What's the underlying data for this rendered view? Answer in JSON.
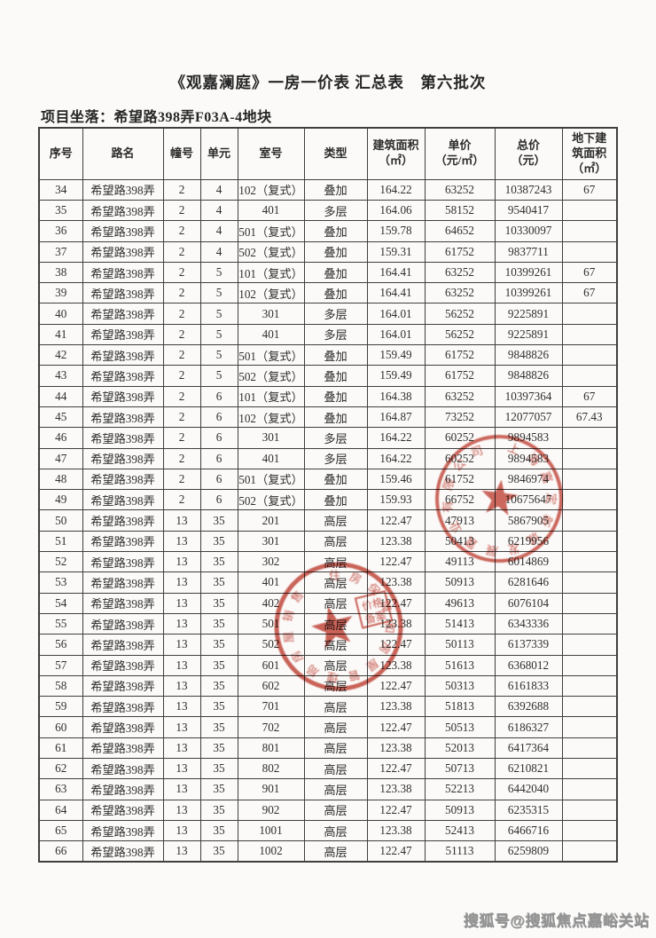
{
  "page": {
    "title": "《观嘉澜庭》一房一价表 汇总表　第六批次",
    "location_label": "项目坐落：",
    "location_value": "希望路398弄F03A-4地块"
  },
  "table": {
    "columns": [
      {
        "key": "seq",
        "label": "序号"
      },
      {
        "key": "road",
        "label": "路名"
      },
      {
        "key": "building",
        "label": "幢号"
      },
      {
        "key": "unit",
        "label": "单元"
      },
      {
        "key": "room",
        "label": "室号"
      },
      {
        "key": "type",
        "label": "类型"
      },
      {
        "key": "area",
        "label": "建筑面积\n（㎡）"
      },
      {
        "key": "unit-price",
        "label": "单价\n（元/㎡）"
      },
      {
        "key": "total-price",
        "label": "总价\n（元）"
      },
      {
        "key": "basement-area",
        "label": "地下建\n筑面积\n（㎡）"
      }
    ],
    "rows": [
      [
        "34",
        "希望路398弄",
        "2",
        "4",
        "102（复式）",
        "叠加",
        "164.22",
        "63252",
        "10387243",
        "67"
      ],
      [
        "35",
        "希望路398弄",
        "2",
        "4",
        "401",
        "多层",
        "164.06",
        "58152",
        "9540417",
        ""
      ],
      [
        "36",
        "希望路398弄",
        "2",
        "4",
        "501（复式）",
        "叠加",
        "159.78",
        "64652",
        "10330097",
        ""
      ],
      [
        "37",
        "希望路398弄",
        "2",
        "4",
        "502（复式）",
        "叠加",
        "159.31",
        "61752",
        "9837711",
        ""
      ],
      [
        "38",
        "希望路398弄",
        "2",
        "5",
        "101（复式）",
        "叠加",
        "164.41",
        "63252",
        "10399261",
        "67"
      ],
      [
        "39",
        "希望路398弄",
        "2",
        "5",
        "102（复式）",
        "叠加",
        "164.41",
        "63252",
        "10399261",
        "67"
      ],
      [
        "40",
        "希望路398弄",
        "2",
        "5",
        "301",
        "多层",
        "164.01",
        "56252",
        "9225891",
        ""
      ],
      [
        "41",
        "希望路398弄",
        "2",
        "5",
        "401",
        "多层",
        "164.01",
        "56252",
        "9225891",
        ""
      ],
      [
        "42",
        "希望路398弄",
        "2",
        "5",
        "501（复式）",
        "叠加",
        "159.49",
        "61752",
        "9848826",
        ""
      ],
      [
        "43",
        "希望路398弄",
        "2",
        "5",
        "502（复式）",
        "叠加",
        "159.49",
        "61752",
        "9848826",
        ""
      ],
      [
        "44",
        "希望路398弄",
        "2",
        "6",
        "101（复式）",
        "叠加",
        "164.38",
        "63252",
        "10397364",
        "67"
      ],
      [
        "45",
        "希望路398弄",
        "2",
        "6",
        "102（复式）",
        "叠加",
        "164.87",
        "73252",
        "12077057",
        "67.43"
      ],
      [
        "46",
        "希望路398弄",
        "2",
        "6",
        "301",
        "多层",
        "164.22",
        "60252",
        "9894583",
        ""
      ],
      [
        "47",
        "希望路398弄",
        "2",
        "6",
        "401",
        "多层",
        "164.22",
        "60252",
        "9894583",
        ""
      ],
      [
        "48",
        "希望路398弄",
        "2",
        "6",
        "501（复式）",
        "叠加",
        "159.46",
        "61752",
        "9846974",
        ""
      ],
      [
        "49",
        "希望路398弄",
        "2",
        "6",
        "502（复式）",
        "叠加",
        "159.93",
        "66752",
        "10675647",
        ""
      ],
      [
        "50",
        "希望路398弄",
        "13",
        "35",
        "201",
        "高层",
        "122.47",
        "47913",
        "5867905",
        ""
      ],
      [
        "51",
        "希望路398弄",
        "13",
        "35",
        "301",
        "高层",
        "123.38",
        "50413",
        "6219956",
        ""
      ],
      [
        "52",
        "希望路398弄",
        "13",
        "35",
        "302",
        "高层",
        "122.47",
        "49113",
        "6014869",
        ""
      ],
      [
        "53",
        "希望路398弄",
        "13",
        "35",
        "401",
        "高层",
        "123.38",
        "50913",
        "6281646",
        ""
      ],
      [
        "54",
        "希望路398弄",
        "13",
        "35",
        "402",
        "高层",
        "122.47",
        "49613",
        "6076104",
        ""
      ],
      [
        "55",
        "希望路398弄",
        "13",
        "35",
        "501",
        "高层",
        "123.38",
        "51413",
        "6343336",
        ""
      ],
      [
        "56",
        "希望路398弄",
        "13",
        "35",
        "502",
        "高层",
        "122.47",
        "50113",
        "6137339",
        ""
      ],
      [
        "57",
        "希望路398弄",
        "13",
        "35",
        "601",
        "高层",
        "123.38",
        "51613",
        "6368012",
        ""
      ],
      [
        "58",
        "希望路398弄",
        "13",
        "35",
        "602",
        "高层",
        "122.47",
        "50313",
        "6161833",
        ""
      ],
      [
        "59",
        "希望路398弄",
        "13",
        "35",
        "701",
        "高层",
        "123.38",
        "51813",
        "6392688",
        ""
      ],
      [
        "60",
        "希望路398弄",
        "13",
        "35",
        "702",
        "高层",
        "122.47",
        "50513",
        "6186327",
        ""
      ],
      [
        "61",
        "希望路398弄",
        "13",
        "35",
        "801",
        "高层",
        "123.38",
        "52013",
        "6417364",
        ""
      ],
      [
        "62",
        "希望路398弄",
        "13",
        "35",
        "802",
        "高层",
        "122.47",
        "50713",
        "6210821",
        ""
      ],
      [
        "63",
        "希望路398弄",
        "13",
        "35",
        "901",
        "高层",
        "123.38",
        "52213",
        "6442040",
        ""
      ],
      [
        "64",
        "希望路398弄",
        "13",
        "35",
        "902",
        "高层",
        "122.47",
        "50913",
        "6235315",
        ""
      ],
      [
        "65",
        "希望路398弄",
        "13",
        "35",
        "1001",
        "高层",
        "123.38",
        "52413",
        "6466716",
        ""
      ],
      [
        "66",
        "希望路398弄",
        "13",
        "35",
        "1002",
        "高层",
        "122.47",
        "51113",
        "6259809",
        ""
      ]
    ]
  },
  "seals": [
    {
      "arc_text": "上海嘉定新城发展置业有限公司",
      "inner_text": ""
    },
    {
      "arc_text": "住房保障和房屋管理局房屋销售",
      "inner_line1": "价格",
      "inner_line2": "备案"
    }
  ],
  "colors": {
    "seal": "#c5483e",
    "border": "#3f3f3f"
  },
  "watermark": {
    "text": "搜狐号@搜狐焦点嘉峪关站"
  }
}
